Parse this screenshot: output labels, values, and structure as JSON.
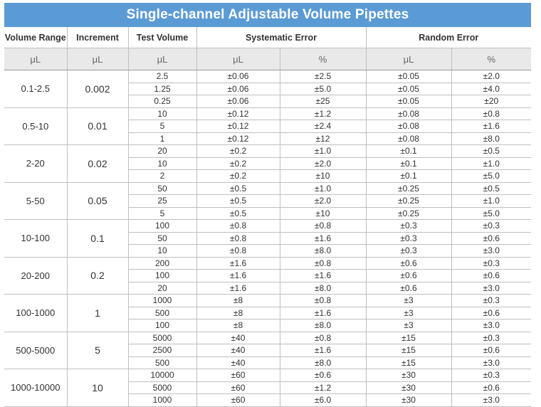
{
  "title": "Single-channel Adjustable Volume Pipettes",
  "headers": {
    "volume_range": "Volume Range",
    "increment": "Increment",
    "test_volume": "Test Volume",
    "systematic_error": "Systematic Error",
    "random_error": "Random Error"
  },
  "units": [
    "μL",
    "μL",
    "μL",
    "μL",
    "%",
    "μL",
    "%"
  ],
  "groups": [
    {
      "range": "0.1-2.5",
      "increment": "0.002",
      "rows": [
        [
          "2.5",
          "±0.06",
          "±2.5",
          "±0.05",
          "±2.0"
        ],
        [
          "1.25",
          "±0.06",
          "±5.0",
          "±0.05",
          "±4.0"
        ],
        [
          "0.25",
          "±0.06",
          "±25",
          "±0.05",
          "±20"
        ]
      ]
    },
    {
      "range": "0.5-10",
      "increment": "0.01",
      "rows": [
        [
          "10",
          "±0.12",
          "±1.2",
          "±0.08",
          "±0.8"
        ],
        [
          "5",
          "±0.12",
          "±2.4",
          "±0.08",
          "±1.6"
        ],
        [
          "1",
          "±0.12",
          "±12",
          "±0.08",
          "±8.0"
        ]
      ]
    },
    {
      "range": "2-20",
      "increment": "0.02",
      "rows": [
        [
          "20",
          "±0.2",
          "±1.0",
          "±0.1",
          "±0.5"
        ],
        [
          "10",
          "±0.2",
          "±2.0",
          "±0.1",
          "±1.0"
        ],
        [
          "2",
          "±0.2",
          "±10",
          "±0.1",
          "±5.0"
        ]
      ]
    },
    {
      "range": "5-50",
      "increment": "0.05",
      "rows": [
        [
          "50",
          "±0.5",
          "±1.0",
          "±0.25",
          "±0.5"
        ],
        [
          "25",
          "±0.5",
          "±2.0",
          "±0.25",
          "±1.0"
        ],
        [
          "5",
          "±0.5",
          "±10",
          "±0.25",
          "±5.0"
        ]
      ]
    },
    {
      "range": "10-100",
      "increment": "0.1",
      "rows": [
        [
          "100",
          "±0.8",
          "±0.8",
          "±0.3",
          "±0.3"
        ],
        [
          "50",
          "±0.8",
          "±1.6",
          "±0.3",
          "±0.6"
        ],
        [
          "10",
          "±0.8",
          "±8.0",
          "±0.3",
          "±3.0"
        ]
      ]
    },
    {
      "range": "20-200",
      "increment": "0.2",
      "rows": [
        [
          "200",
          "±1.6",
          "±0.8",
          "±0.6",
          "±0.3"
        ],
        [
          "100",
          "±1.6",
          "±1.6",
          "±0.6",
          "±0.6"
        ],
        [
          "20",
          "±1.6",
          "±8.0",
          "±0.6",
          "±3.0"
        ]
      ]
    },
    {
      "range": "100-1000",
      "increment": "1",
      "rows": [
        [
          "1000",
          "±8",
          "±0.8",
          "±3",
          "±0.3"
        ],
        [
          "500",
          "±8",
          "±1.6",
          "±3",
          "±0.6"
        ],
        [
          "100",
          "±8",
          "±8.0",
          "±3",
          "±3.0"
        ]
      ]
    },
    {
      "range": "500-5000",
      "increment": "5",
      "rows": [
        [
          "5000",
          "±40",
          "±0.8",
          "±15",
          "±0.3"
        ],
        [
          "2500",
          "±40",
          "±1.6",
          "±15",
          "±0.6"
        ],
        [
          "500",
          "±40",
          "±8.0",
          "±15",
          "±3.0"
        ]
      ]
    },
    {
      "range": "1000-10000",
      "increment": "10",
      "rows": [
        [
          "10000",
          "±60",
          "±0.6",
          "±30",
          "±0.3"
        ],
        [
          "5000",
          "±60",
          "±1.2",
          "±30",
          "±0.6"
        ],
        [
          "1000",
          "±60",
          "±6.0",
          "±30",
          "±3.0"
        ]
      ]
    }
  ]
}
